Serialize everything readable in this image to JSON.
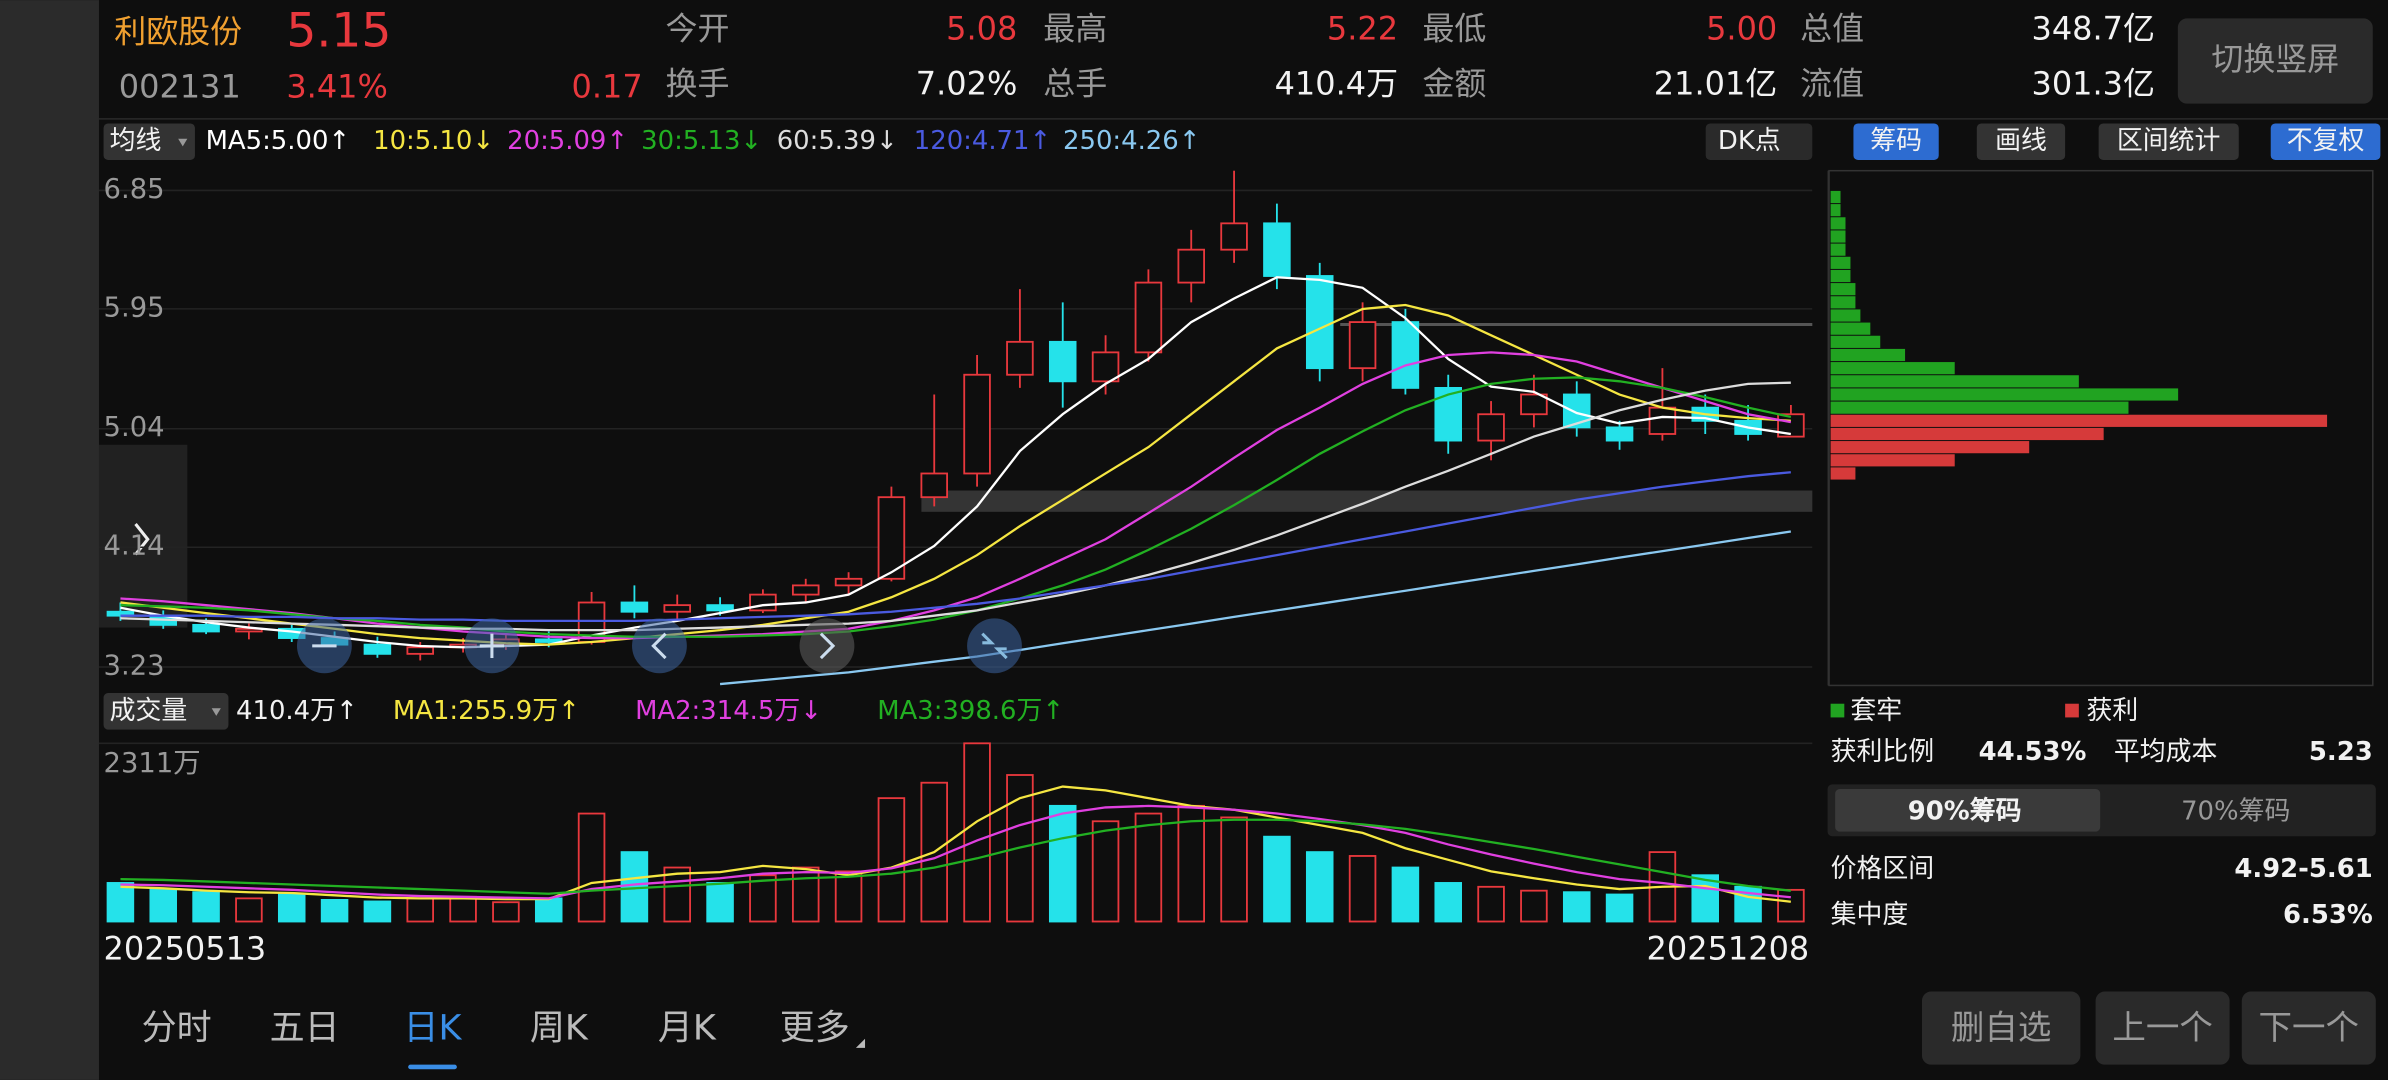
{
  "header": {
    "name": "利欧股份",
    "price": "5.15",
    "code": "002131",
    "change_pct": "3.41%",
    "change": "0.17",
    "stats": [
      {
        "label": "今开",
        "value": "5.08"
      },
      {
        "label": "最高",
        "value": "5.22"
      },
      {
        "label": "最低",
        "value": "5.00"
      },
      {
        "label": "总值",
        "value": "348.7亿"
      },
      {
        "label": "换手",
        "value": "7.02%"
      },
      {
        "label": "总手",
        "value": "410.4万"
      },
      {
        "label": "金额",
        "value": "21.01亿"
      },
      {
        "label": "流值",
        "value": "301.3亿"
      }
    ],
    "rotate_button": "切换竖屏"
  },
  "toolbar": {
    "ma_menu": "均线",
    "dk": "DK点",
    "tabs": [
      "筹码",
      "画线",
      "区间统计",
      "不复权"
    ]
  },
  "chart_data": [
    {
      "type": "candlestick",
      "up_color": "#e8383d",
      "down_color": "#25e2ea",
      "categories": [
        "20250513",
        null,
        null,
        null,
        null,
        null,
        null,
        null,
        null,
        null,
        null,
        null,
        null,
        null,
        null,
        null,
        null,
        null,
        null,
        null,
        null,
        null,
        null,
        null,
        null,
        null,
        null,
        null,
        null,
        null,
        null,
        null,
        null,
        null,
        null,
        null,
        null,
        null,
        null,
        "20251208"
      ],
      "open": [
        3.65,
        3.62,
        3.55,
        3.5,
        3.52,
        3.45,
        3.4,
        3.33,
        3.38,
        3.4,
        3.44,
        3.42,
        3.72,
        3.65,
        3.7,
        3.66,
        3.78,
        3.85,
        3.9,
        4.52,
        4.7,
        5.45,
        5.7,
        5.4,
        5.62,
        6.15,
        6.4,
        6.6,
        6.2,
        5.5,
        5.85,
        5.35,
        4.95,
        5.15,
        5.3,
        5.05,
        5.0,
        5.2,
        5.1,
        4.98
      ],
      "high": [
        3.72,
        3.66,
        3.6,
        3.56,
        3.55,
        3.5,
        3.46,
        3.42,
        3.45,
        3.48,
        3.5,
        3.8,
        3.85,
        3.78,
        3.76,
        3.82,
        3.9,
        3.95,
        4.6,
        5.3,
        5.6,
        6.1,
        6.0,
        5.75,
        6.25,
        6.55,
        7.0,
        6.75,
        6.3,
        6.0,
        5.95,
        5.45,
        5.25,
        5.45,
        5.4,
        5.1,
        5.5,
        5.3,
        5.22,
        5.22
      ],
      "low": [
        3.58,
        3.52,
        3.48,
        3.44,
        3.42,
        3.38,
        3.3,
        3.28,
        3.34,
        3.36,
        3.38,
        3.4,
        3.6,
        3.58,
        3.62,
        3.64,
        3.72,
        3.78,
        3.88,
        4.45,
        4.6,
        5.35,
        5.2,
        5.3,
        5.55,
        6.0,
        6.3,
        6.1,
        5.4,
        5.4,
        5.3,
        4.85,
        4.8,
        5.05,
        4.98,
        4.88,
        4.95,
        5.0,
        4.95,
        4.98
      ],
      "close": [
        3.62,
        3.55,
        3.5,
        3.52,
        3.45,
        3.4,
        3.33,
        3.38,
        3.4,
        3.44,
        3.42,
        3.72,
        3.65,
        3.7,
        3.66,
        3.78,
        3.85,
        3.9,
        4.52,
        4.7,
        5.45,
        5.7,
        5.4,
        5.62,
        6.15,
        6.4,
        6.6,
        6.2,
        5.5,
        5.85,
        5.35,
        4.95,
        5.15,
        5.3,
        5.05,
        4.95,
        5.2,
        5.1,
        5.0,
        5.15
      ],
      "ylim": [
        3.09,
        7.0
      ],
      "yticks": [
        6.85,
        5.95,
        5.04,
        4.14,
        3.23
      ],
      "grid": true,
      "series": [
        {
          "name": "MA5:5.00↑",
          "color": "#ffffff",
          "values": [
            3.68,
            3.62,
            3.57,
            3.53,
            3.5,
            3.46,
            3.42,
            3.39,
            3.38,
            3.39,
            3.4,
            3.47,
            3.53,
            3.58,
            3.64,
            3.7,
            3.72,
            3.78,
            3.95,
            4.15,
            4.45,
            4.87,
            5.15,
            5.38,
            5.57,
            5.85,
            6.03,
            6.19,
            6.17,
            6.11,
            5.88,
            5.57,
            5.36,
            5.32,
            5.16,
            5.08,
            5.13,
            5.12,
            5.05,
            5.0
          ]
        },
        {
          "name": "10:5.10↓",
          "color": "#f5e642",
          "values": [
            3.72,
            3.68,
            3.64,
            3.6,
            3.56,
            3.52,
            3.48,
            3.45,
            3.43,
            3.41,
            3.4,
            3.42,
            3.45,
            3.48,
            3.51,
            3.55,
            3.6,
            3.65,
            3.76,
            3.9,
            4.08,
            4.3,
            4.5,
            4.7,
            4.9,
            5.15,
            5.4,
            5.65,
            5.8,
            5.95,
            5.98,
            5.9,
            5.75,
            5.6,
            5.45,
            5.3,
            5.2,
            5.15,
            5.12,
            5.1
          ]
        },
        {
          "name": "20:5.09↑",
          "color": "#e040e0",
          "values": [
            3.75,
            3.73,
            3.7,
            3.67,
            3.64,
            3.6,
            3.56,
            3.53,
            3.5,
            3.48,
            3.46,
            3.45,
            3.45,
            3.46,
            3.47,
            3.48,
            3.5,
            3.52,
            3.58,
            3.66,
            3.76,
            3.9,
            4.05,
            4.2,
            4.4,
            4.6,
            4.82,
            5.03,
            5.2,
            5.38,
            5.52,
            5.6,
            5.62,
            5.6,
            5.55,
            5.45,
            5.35,
            5.25,
            5.15,
            5.09
          ]
        },
        {
          "name": "30:5.13↓",
          "color": "#22b022",
          "values": [
            3.7,
            3.69,
            3.68,
            3.66,
            3.63,
            3.6,
            3.58,
            3.55,
            3.53,
            3.5,
            3.48,
            3.47,
            3.46,
            3.46,
            3.46,
            3.47,
            3.48,
            3.5,
            3.54,
            3.59,
            3.66,
            3.75,
            3.85,
            3.97,
            4.12,
            4.28,
            4.46,
            4.65,
            4.85,
            5.02,
            5.18,
            5.3,
            5.38,
            5.42,
            5.43,
            5.4,
            5.35,
            5.28,
            5.2,
            5.13
          ]
        },
        {
          "name": "60:5.39↓",
          "color": "#dddddd",
          "values": [
            3.6,
            3.59,
            3.58,
            3.57,
            3.56,
            3.55,
            3.54,
            3.53,
            3.52,
            3.52,
            3.51,
            3.51,
            3.51,
            3.52,
            3.53,
            3.54,
            3.55,
            3.56,
            3.58,
            3.62,
            3.66,
            3.72,
            3.78,
            3.85,
            3.93,
            4.02,
            4.12,
            4.23,
            4.35,
            4.47,
            4.6,
            4.72,
            4.85,
            4.98,
            5.08,
            5.18,
            5.26,
            5.33,
            5.38,
            5.39
          ]
        },
        {
          "name": "120:4.71↑",
          "color": "#4a5ae0",
          "values": [
            3.62,
            3.62,
            3.62,
            3.61,
            3.61,
            3.6,
            3.6,
            3.59,
            3.59,
            3.58,
            3.58,
            3.58,
            3.58,
            3.59,
            3.6,
            3.61,
            3.62,
            3.63,
            3.65,
            3.68,
            3.71,
            3.75,
            3.8,
            3.85,
            3.9,
            3.96,
            4.02,
            4.08,
            4.14,
            4.2,
            4.26,
            4.32,
            4.38,
            4.44,
            4.5,
            4.55,
            4.6,
            4.64,
            4.68,
            4.71
          ]
        },
        {
          "name": "250:4.26↑",
          "color": "#8ac8f0",
          "values": [
            null,
            null,
            null,
            null,
            null,
            null,
            null,
            null,
            null,
            null,
            null,
            null,
            null,
            null,
            3.1,
            3.13,
            3.16,
            3.19,
            3.23,
            3.27,
            3.31,
            3.36,
            3.41,
            3.46,
            3.51,
            3.56,
            3.61,
            3.66,
            3.71,
            3.76,
            3.81,
            3.86,
            3.91,
            3.96,
            4.01,
            4.06,
            4.11,
            4.16,
            4.21,
            4.26
          ]
        }
      ]
    },
    {
      "type": "volume",
      "menu": "成交量",
      "current": "410.4万↑",
      "values": [
        500,
        420,
        380,
        300,
        350,
        280,
        260,
        300,
        320,
        250,
        300,
        1400,
        900,
        700,
        500,
        600,
        700,
        650,
        1600,
        1800,
        2311,
        1900,
        1500,
        1300,
        1400,
        1500,
        1350,
        1100,
        900,
        850,
        700,
        500,
        450,
        400,
        380,
        350,
        900,
        600,
        450,
        410.4
      ],
      "ylim": [
        0,
        2311
      ],
      "yticks": [
        {
          "value": 2311,
          "label": "2311万"
        }
      ],
      "series": [
        {
          "name": "MA1:255.9万↑",
          "color": "#f5e642",
          "values": [
            450,
            430,
            400,
            380,
            370,
            340,
            310,
            300,
            300,
            290,
            290,
            500,
            560,
            620,
            640,
            720,
            680,
            600,
            700,
            900,
            1300,
            1600,
            1750,
            1700,
            1600,
            1500,
            1450,
            1350,
            1250,
            1150,
            950,
            800,
            650,
            560,
            480,
            420,
            450,
            460,
            320,
            255.9
          ]
        },
        {
          "name": "MA2:314.5万↓",
          "color": "#e040e0",
          "values": [
            480,
            470,
            450,
            430,
            410,
            380,
            350,
            330,
            320,
            310,
            300,
            420,
            480,
            520,
            560,
            620,
            640,
            630,
            690,
            820,
            1050,
            1250,
            1400,
            1480,
            1500,
            1480,
            1450,
            1400,
            1330,
            1250,
            1150,
            1000,
            870,
            750,
            640,
            550,
            500,
            430,
            370,
            314.5
          ]
        },
        {
          "name": "MA3:398.6万↑",
          "color": "#22b022",
          "values": [
            550,
            540,
            520,
            500,
            480,
            460,
            440,
            420,
            400,
            380,
            360,
            400,
            430,
            460,
            490,
            530,
            560,
            580,
            620,
            700,
            820,
            960,
            1080,
            1180,
            1250,
            1300,
            1320,
            1320,
            1300,
            1260,
            1200,
            1120,
            1030,
            940,
            840,
            740,
            640,
            540,
            460,
            398.6
          ]
        }
      ]
    },
    {
      "type": "hbar",
      "ylim": [
        3.09,
        7.0
      ],
      "prices": [
        4.7,
        4.8,
        4.9,
        5.0,
        5.1,
        5.2,
        5.3,
        5.4,
        5.5,
        5.6,
        5.7,
        5.8,
        5.9,
        6.0,
        6.1,
        6.2,
        6.3,
        6.4,
        6.5,
        6.6,
        6.7,
        6.8
      ],
      "values": [
        5,
        25,
        40,
        55,
        100,
        60,
        70,
        50,
        25,
        15,
        10,
        8,
        6,
        5,
        5,
        4,
        4,
        3,
        3,
        3,
        2,
        2
      ],
      "series": [
        {
          "name": "套牢",
          "color": "#21a321"
        },
        {
          "name": "获利",
          "color": "#d63a3a"
        }
      ]
    }
  ],
  "chip_panel": {
    "profit_ratio_label": "获利比例",
    "profit_ratio": "44.53%",
    "avg_cost_label": "平均成本",
    "avg_cost": "5.23",
    "modes": [
      "90%筹码",
      "70%筹码"
    ],
    "range_label": "价格区间",
    "range": "4.92-5.61",
    "concentration_label": "集中度",
    "concentration": "6.53%"
  },
  "period_tabs": [
    "分时",
    "五日",
    "日K",
    "周K",
    "月K",
    "更多"
  ],
  "actions": [
    "删自选",
    "上一个",
    "下一个"
  ]
}
